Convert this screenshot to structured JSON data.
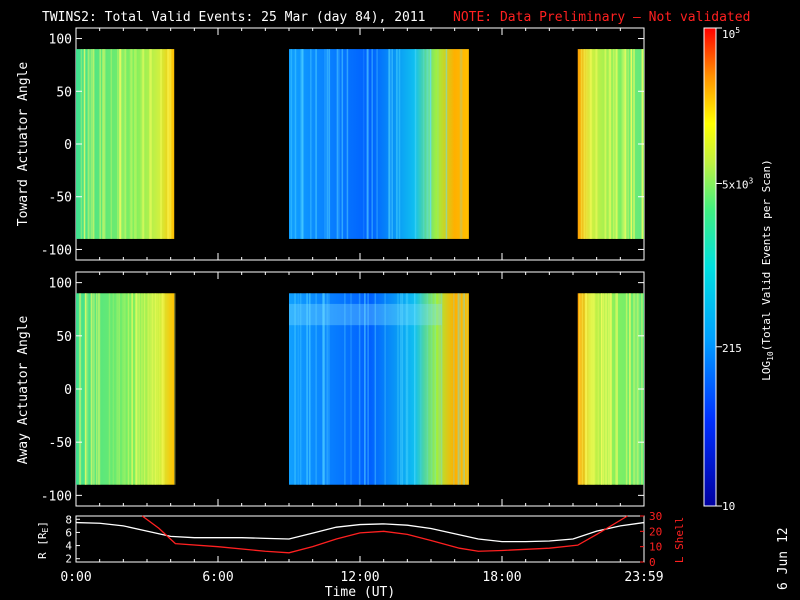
{
  "header": {
    "title": "TWINS2: Total Valid Events: 25 Mar (day  84), 2011",
    "note": "NOTE: Data Preliminary — Not validated",
    "note_color": "#ff2020"
  },
  "footer": {
    "date_stamp": "6 Jun 12"
  },
  "chart_data": [
    {
      "type": "heatmap",
      "panel": "toward",
      "ylabel": "Toward Actuator Angle",
      "ylim": [
        -110,
        110
      ],
      "yticks": [
        "100",
        "50",
        "0",
        "-50",
        "-100"
      ],
      "y_extent": [
        -90,
        90
      ],
      "x_unit": "hours UT",
      "segments": [
        {
          "start_h": 0.0,
          "end_h": 4.15
        },
        {
          "start_h": 9.0,
          "end_h": 16.6
        },
        {
          "start_h": 21.2,
          "end_h": 24.0
        }
      ]
    },
    {
      "type": "heatmap",
      "panel": "away",
      "ylabel": "Away Actuator Angle",
      "ylim": [
        -110,
        110
      ],
      "yticks": [
        "100",
        "50",
        "0",
        "-50",
        "-100"
      ],
      "y_extent": [
        -90,
        90
      ],
      "x_unit": "hours UT",
      "segments": [
        {
          "start_h": 0.0,
          "end_h": 4.15
        },
        {
          "start_h": 9.0,
          "end_h": 16.6
        },
        {
          "start_h": 21.2,
          "end_h": 24.0
        }
      ]
    },
    {
      "type": "line",
      "panel": "orbit",
      "ylabel_left": "R [RE]",
      "ylabel_right": "L Shell",
      "yticks_left": [
        "8",
        "6",
        "4",
        "2"
      ],
      "yticks_right": [
        "30",
        "20",
        "10",
        "0"
      ],
      "ylim_left": [
        1.5,
        8.5
      ],
      "ylim_right": [
        0,
        30
      ],
      "xlabel": "Time (UT)",
      "xticks": [
        "0:00",
        "6:00",
        "12:00",
        "18:00",
        "23:59"
      ],
      "xlim": [
        0,
        24
      ],
      "series": [
        {
          "color": "#ffffff",
          "x": [
            0,
            1,
            2,
            3,
            4,
            5,
            6,
            7,
            8,
            9,
            10,
            11,
            12,
            13,
            14,
            15,
            16,
            17,
            18,
            19,
            20,
            21,
            22,
            23,
            24
          ],
          "values": [
            7.5,
            7.4,
            7.0,
            6.2,
            5.4,
            5.2,
            5.2,
            5.2,
            5.1,
            5.0,
            5.9,
            6.8,
            7.2,
            7.3,
            7.1,
            6.6,
            5.8,
            5.0,
            4.6,
            4.6,
            4.7,
            5.0,
            6.2,
            7.0,
            7.5
          ]
        },
        {
          "color": "#ff2020",
          "x": [
            2.8,
            3.5,
            4.2,
            6,
            8,
            9,
            10,
            11,
            12,
            13,
            14,
            15,
            16.2,
            17,
            18,
            20,
            21.2,
            22,
            23.3
          ],
          "values_right": [
            30,
            22,
            12,
            10,
            7,
            6,
            10,
            15,
            19,
            20,
            18,
            14,
            9,
            7,
            7.5,
            9,
            11,
            18,
            31
          ]
        }
      ]
    }
  ],
  "colorbar": {
    "label": "LOG10(Total Valid Events per Scan)",
    "label_main": "LOG",
    "label_sub": "10",
    "label_rest": "(Total Valid Events per Scan)",
    "ticks": [
      {
        "base": "10",
        "exp": "5",
        "color": "#ff2020",
        "value": 100000
      },
      {
        "base": "5x10",
        "exp": "3",
        "color": "#ffffff",
        "value": 5000
      },
      {
        "base": "215",
        "exp": "",
        "color": "#ffffff",
        "value": 215
      },
      {
        "base": "10",
        "exp": "",
        "color": "#ffffff",
        "value": 10
      }
    ],
    "range": [
      10,
      100000
    ]
  }
}
